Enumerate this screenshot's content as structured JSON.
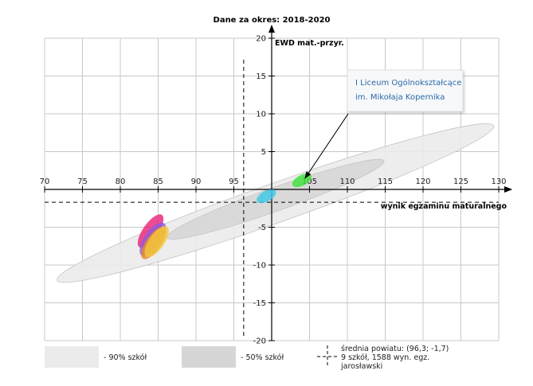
{
  "chart_data": {
    "type": "scatter",
    "title": "Dane za okres: 2018-2020",
    "xlabel": "wynik egzaminu maturalnego",
    "ylabel": "EWD mat.-przyr.",
    "xlim": [
      70,
      130
    ],
    "ylim": [
      -20,
      20
    ],
    "x_ticks": [
      70,
      75,
      80,
      85,
      90,
      95,
      100,
      105,
      110,
      115,
      120,
      125,
      130
    ],
    "x_tick_labels": [
      "70",
      "75",
      "80",
      "85",
      "90",
      "95",
      "",
      "105",
      "110",
      "115",
      "120",
      "125",
      "130"
    ],
    "y_ticks": [
      -20,
      -15,
      -10,
      -5,
      0,
      5,
      10,
      15,
      20
    ],
    "y_tick_labels": [
      "-20",
      "-15",
      "-10",
      "-5",
      "",
      "5",
      "10",
      "15",
      "20"
    ],
    "grid": true,
    "grid_x_step": 5,
    "grid_y_step": 5,
    "county_mean": {
      "x": 96.3,
      "y": -1.7
    },
    "bands": [
      {
        "key": "band90",
        "cx": 100.5,
        "cy": -1.8,
        "rx": 30.6,
        "ry": 2.6,
        "angle_deg": -19.5,
        "color": "#ebebeb"
      },
      {
        "key": "band50",
        "cx": 100.5,
        "cy": -1.3,
        "rx": 15.2,
        "ry": 1.55,
        "angle_deg": -19.5,
        "color": "#d6d6d6"
      }
    ],
    "schools": [
      {
        "x": 104.0,
        "y": 1.2,
        "rx": 1.4,
        "ry": 0.7,
        "angle_deg": -28,
        "color": "#3fe23a"
      },
      {
        "x": 99.3,
        "y": -0.9,
        "rx": 1.4,
        "ry": 0.7,
        "angle_deg": -28,
        "color": "#3ec8e6"
      },
      {
        "x": 84.0,
        "y": -5.5,
        "rx": 2.6,
        "ry": 1.0,
        "angle_deg": -55,
        "color": "#e8257a"
      },
      {
        "x": 84.3,
        "y": -6.6,
        "rx": 2.6,
        "ry": 1.1,
        "angle_deg": -55,
        "color": "#8e5ce0"
      },
      {
        "x": 84.4,
        "y": -7.1,
        "rx": 2.5,
        "ry": 1.0,
        "angle_deg": -55,
        "color": "#e88a2a"
      },
      {
        "x": 84.8,
        "y": -6.9,
        "rx": 2.4,
        "ry": 1.0,
        "angle_deg": -55,
        "color": "#f3c73d"
      }
    ],
    "annotation": {
      "lines": [
        "I Liceum Ogólnokształcące",
        "im. Mikołaja Kopernika"
      ],
      "target": {
        "x": 104.0,
        "y": 1.5
      }
    },
    "legend": {
      "band90": "- 90% szkół",
      "band50": "- 50% szkół",
      "county_lines": [
        "średnia powiatu: (96,3; -1,7)",
        "9 szkół, 1588 wyn. egz.",
        "jarosławski"
      ]
    },
    "colors": {
      "grid": "#c8c8c8",
      "axis": "#000000",
      "annotation_text": "#2a6aa8",
      "legend_box_90": "#ebebeb",
      "legend_box_50": "#d6d6d6"
    }
  }
}
